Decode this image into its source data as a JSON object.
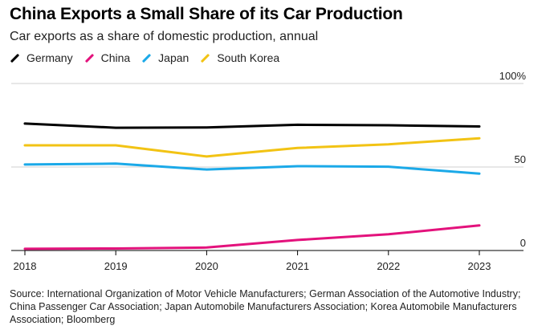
{
  "chart_data": {
    "type": "line",
    "title": "China Exports a Small Share of its Car Production",
    "subtitle": "Car exports as a share of domestic production, annual",
    "x": [
      2018,
      2019,
      2020,
      2021,
      2022,
      2023
    ],
    "x_tick_labels": [
      "2018",
      "2019",
      "2020",
      "2021",
      "2022",
      "2023"
    ],
    "y_tick_labels": [
      "100%",
      "50",
      "0"
    ],
    "y_ticks": [
      100,
      50,
      0
    ],
    "ylim": [
      0,
      100
    ],
    "y_axis_position": "right",
    "grid": true,
    "legend_position": "top-left",
    "series": [
      {
        "name": "Germany",
        "color": "#000000",
        "values": [
          76,
          73.5,
          73.7,
          75.3,
          75,
          74.3
        ]
      },
      {
        "name": "China",
        "color": "#e3127c",
        "values": [
          1,
          1.2,
          1.8,
          6.3,
          9.7,
          15
        ]
      },
      {
        "name": "Japan",
        "color": "#1ba9e8",
        "values": [
          51.5,
          52,
          48.5,
          50.5,
          50.2,
          46
        ]
      },
      {
        "name": "South Korea",
        "color": "#f2c314",
        "values": [
          63,
          63,
          56.3,
          61.4,
          63.6,
          67.2
        ]
      }
    ],
    "source": "Source: International Organization of Motor Vehicle Manufacturers; German Association of the Automotive Industry; China Passenger Car Association; Japan Automobile Manufacturers Association; Korea Automobile Manufacturers Association; Bloomberg"
  }
}
